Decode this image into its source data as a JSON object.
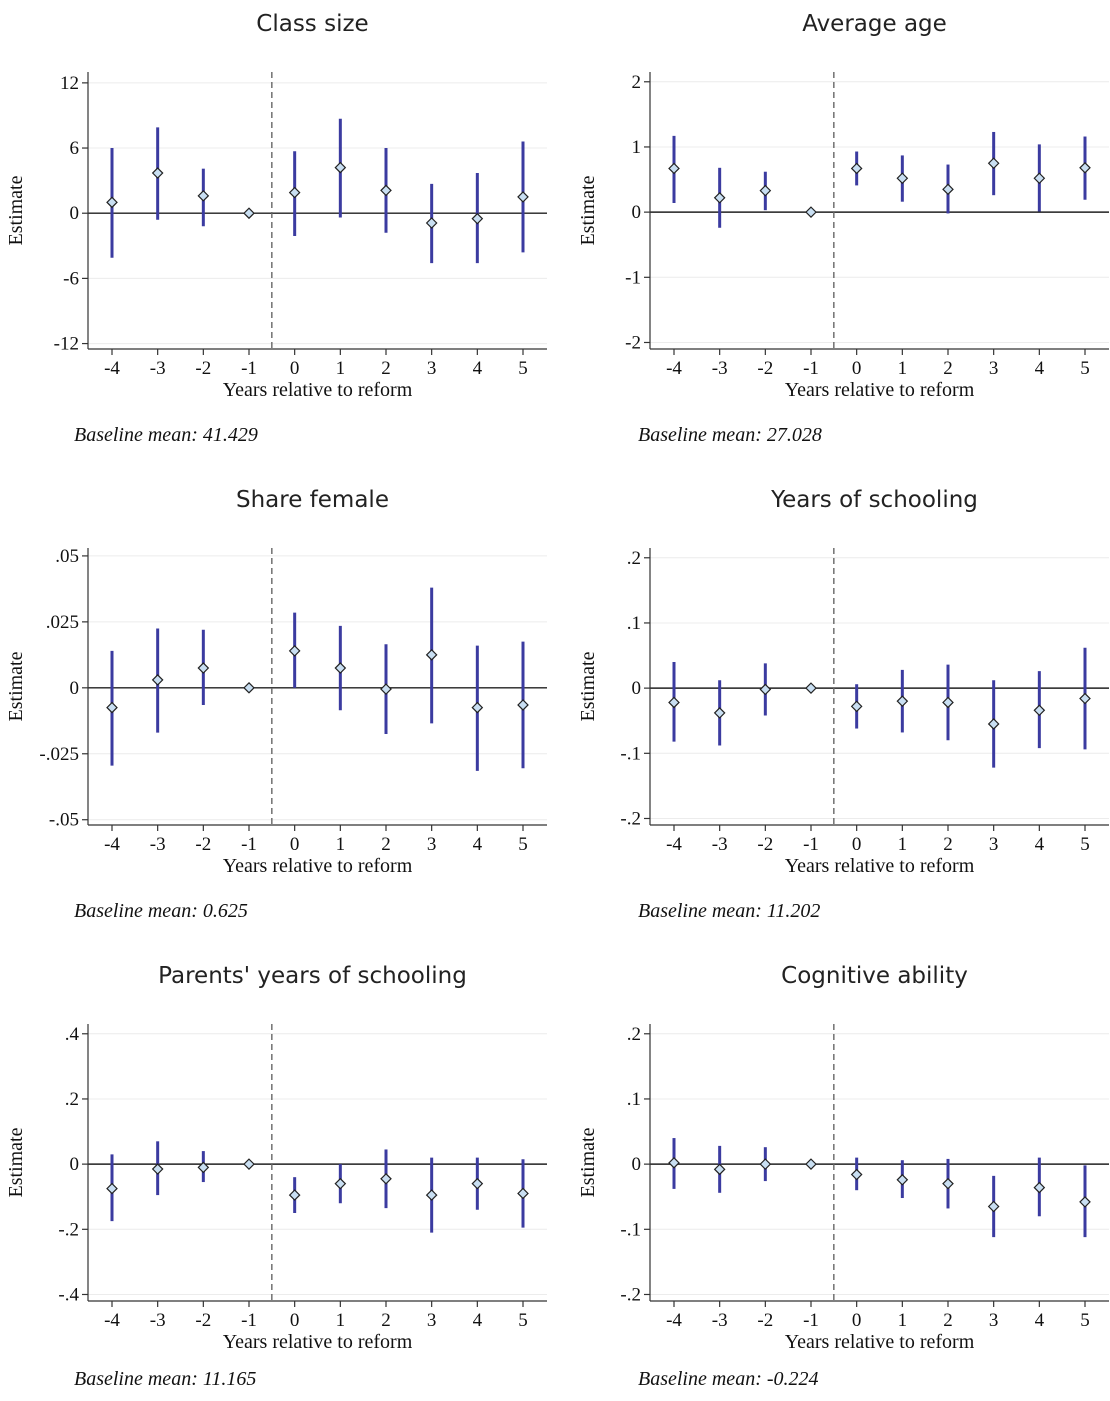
{
  "colors": {
    "ci": "#3b3ba0",
    "point_fill": "#c9dff2",
    "point_stroke": "#222222",
    "reform_line": "#666666"
  },
  "chart_data": [
    {
      "type": "scatter",
      "title": "Class size",
      "xlabel": "Years relative to reform",
      "ylabel": "Estimate",
      "note": "Baseline mean: 41.429",
      "x": [
        -4,
        -3,
        -2,
        -1,
        0,
        1,
        2,
        3,
        4,
        5
      ],
      "xticks": [
        "-4",
        "-3",
        "-2",
        "-1",
        "0",
        "1",
        "2",
        "3",
        "4",
        "5"
      ],
      "estimate": [
        1.0,
        3.7,
        1.6,
        0.0,
        1.9,
        4.2,
        2.1,
        -0.9,
        -0.5,
        1.5
      ],
      "ci_low": [
        -4.1,
        -0.6,
        -1.2,
        0.0,
        -2.1,
        -0.4,
        -1.8,
        -4.6,
        -4.6,
        -3.6
      ],
      "ci_high": [
        6.0,
        7.9,
        4.1,
        0.0,
        5.7,
        8.7,
        6.0,
        2.7,
        3.7,
        6.6
      ],
      "ylim": [
        -12.5,
        13
      ],
      "yticks": [
        -12,
        -6,
        0,
        6,
        12
      ],
      "ytick_labels": [
        "-12",
        "-6",
        "0",
        "6",
        "12"
      ],
      "reform_line_x": -0.5,
      "grid": true
    },
    {
      "type": "scatter",
      "title": "Average age",
      "xlabel": "Years relative to reform",
      "ylabel": "Estimate",
      "note": "Baseline mean: 27.028",
      "x": [
        -4,
        -3,
        -2,
        -1,
        0,
        1,
        2,
        3,
        4,
        5
      ],
      "xticks": [
        "-4",
        "-3",
        "-2",
        "-1",
        "0",
        "1",
        "2",
        "3",
        "4",
        "5"
      ],
      "estimate": [
        0.67,
        0.22,
        0.33,
        0.0,
        0.67,
        0.52,
        0.35,
        0.75,
        0.52,
        0.68
      ],
      "ci_low": [
        0.14,
        -0.24,
        0.03,
        0.0,
        0.41,
        0.16,
        -0.02,
        0.26,
        0.01,
        0.19
      ],
      "ci_high": [
        1.17,
        0.68,
        0.62,
        0.0,
        0.93,
        0.87,
        0.73,
        1.23,
        1.04,
        1.16
      ],
      "ylim": [
        -2.1,
        2.15
      ],
      "yticks": [
        -2,
        -1,
        0,
        1,
        2
      ],
      "ytick_labels": [
        "-2",
        "-1",
        "0",
        "1",
        "2"
      ],
      "reform_line_x": -0.5,
      "grid": true
    },
    {
      "type": "scatter",
      "title": "Share female",
      "xlabel": "Years relative to reform",
      "ylabel": "Estimate",
      "note": "Baseline mean: 0.625",
      "x": [
        -4,
        -3,
        -2,
        -1,
        0,
        1,
        2,
        3,
        4,
        5
      ],
      "xticks": [
        "-4",
        "-3",
        "-2",
        "-1",
        "0",
        "1",
        "2",
        "3",
        "4",
        "5"
      ],
      "estimate": [
        -0.0075,
        0.003,
        0.0075,
        0.0,
        0.014,
        0.0075,
        -0.0005,
        0.0125,
        -0.0075,
        -0.0065
      ],
      "ci_low": [
        -0.0295,
        -0.017,
        -0.0065,
        0.0,
        0.0,
        -0.0085,
        -0.0175,
        -0.0135,
        -0.0315,
        -0.0305
      ],
      "ci_high": [
        0.014,
        0.0225,
        0.022,
        0.0,
        0.0285,
        0.0235,
        0.0165,
        0.038,
        0.016,
        0.0175
      ],
      "ylim": [
        -0.052,
        0.053
      ],
      "yticks": [
        -0.05,
        -0.025,
        0,
        0.025,
        0.05
      ],
      "ytick_labels": [
        "-.05",
        "-.025",
        "0",
        ".025",
        ".05"
      ],
      "reform_line_x": -0.5,
      "grid": true
    },
    {
      "type": "scatter",
      "title": "Years of schooling",
      "xlabel": "Years relative to reform",
      "ylabel": "Estimate",
      "note": "Baseline mean: 11.202",
      "x": [
        -4,
        -3,
        -2,
        -1,
        0,
        1,
        2,
        3,
        4,
        5
      ],
      "xticks": [
        "-4",
        "-3",
        "-2",
        "-1",
        "0",
        "1",
        "2",
        "3",
        "4",
        "5"
      ],
      "estimate": [
        -0.022,
        -0.038,
        -0.002,
        0.0,
        -0.028,
        -0.02,
        -0.022,
        -0.055,
        -0.034,
        -0.016
      ],
      "ci_low": [
        -0.082,
        -0.088,
        -0.042,
        0.0,
        -0.062,
        -0.068,
        -0.08,
        -0.122,
        -0.092,
        -0.094
      ],
      "ci_high": [
        0.04,
        0.012,
        0.038,
        0.0,
        0.006,
        0.028,
        0.036,
        0.012,
        0.026,
        0.062
      ],
      "ylim": [
        -0.21,
        0.215
      ],
      "yticks": [
        -0.2,
        -0.1,
        0,
        0.1,
        0.2
      ],
      "ytick_labels": [
        "-.2",
        "-.1",
        "0",
        ".1",
        ".2"
      ],
      "reform_line_x": -0.5,
      "grid": true
    },
    {
      "type": "scatter",
      "title": "Parents' years of schooling",
      "xlabel": "Years relative to reform",
      "ylabel": "Estimate",
      "note": "Baseline mean: 11.165",
      "x": [
        -4,
        -3,
        -2,
        -1,
        0,
        1,
        2,
        3,
        4,
        5
      ],
      "xticks": [
        "-4",
        "-3",
        "-2",
        "-1",
        "0",
        "1",
        "2",
        "3",
        "4",
        "5"
      ],
      "estimate": [
        -0.075,
        -0.015,
        -0.01,
        0.0,
        -0.095,
        -0.06,
        -0.045,
        -0.095,
        -0.06,
        -0.09
      ],
      "ci_low": [
        -0.175,
        -0.095,
        -0.055,
        0.0,
        -0.15,
        -0.12,
        -0.135,
        -0.21,
        -0.14,
        -0.195
      ],
      "ci_high": [
        0.03,
        0.07,
        0.04,
        0.0,
        -0.04,
        0.0,
        0.045,
        0.02,
        0.02,
        0.015
      ],
      "ylim": [
        -0.42,
        0.43
      ],
      "yticks": [
        -0.4,
        -0.2,
        0,
        0.2,
        0.4
      ],
      "ytick_labels": [
        "-.4",
        "-.2",
        "0",
        ".2",
        ".4"
      ],
      "reform_line_x": -0.5,
      "grid": true
    },
    {
      "type": "scatter",
      "title": "Cognitive ability",
      "xlabel": "Years relative to reform",
      "ylabel": "Estimate",
      "note": "Baseline mean: -0.224",
      "x": [
        -4,
        -3,
        -2,
        -1,
        0,
        1,
        2,
        3,
        4,
        5
      ],
      "xticks": [
        "-4",
        "-3",
        "-2",
        "-1",
        "0",
        "1",
        "2",
        "3",
        "4",
        "5"
      ],
      "estimate": [
        0.002,
        -0.008,
        0.0,
        0.0,
        -0.016,
        -0.024,
        -0.03,
        -0.065,
        -0.036,
        -0.058
      ],
      "ci_low": [
        -0.038,
        -0.044,
        -0.026,
        0.0,
        -0.04,
        -0.052,
        -0.068,
        -0.112,
        -0.08,
        -0.112
      ],
      "ci_high": [
        0.04,
        0.028,
        0.026,
        0.0,
        0.01,
        0.006,
        0.008,
        -0.018,
        0.01,
        -0.002
      ],
      "ylim": [
        -0.21,
        0.215
      ],
      "yticks": [
        -0.2,
        -0.1,
        0,
        0.1,
        0.2
      ],
      "ytick_labels": [
        "-.2",
        "-.1",
        "0",
        ".1",
        ".2"
      ],
      "reform_line_x": -0.5,
      "grid": true
    }
  ]
}
